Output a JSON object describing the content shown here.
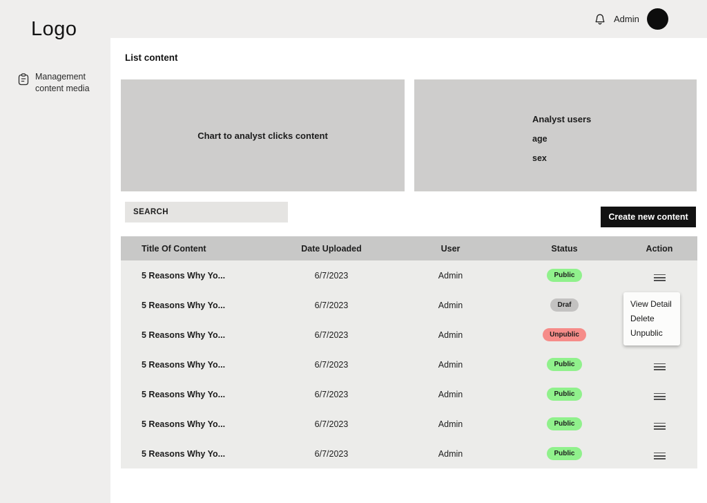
{
  "sidebar": {
    "logo": "Logo",
    "items": [
      {
        "label": "Management\ncontent media"
      }
    ]
  },
  "header": {
    "user": "Admin",
    "icons": [
      "bell-icon",
      "avatar"
    ]
  },
  "page": {
    "title": "List content"
  },
  "panels": {
    "chart_placeholder": "Chart to analyst clicks content",
    "analyst": {
      "title": "Analyst users",
      "lines": [
        "age",
        "sex"
      ]
    }
  },
  "search": {
    "placeholder": "SEARCH"
  },
  "actions": {
    "create_button": "Create new content"
  },
  "table": {
    "columns": [
      "Title Of Content",
      "Date Uploaded",
      "User",
      "Status",
      "Action"
    ],
    "rows": [
      {
        "title": "5 Reasons Why Yo...",
        "date": "6/7/2023",
        "user": "Admin",
        "status": "Public",
        "status_type": "public"
      },
      {
        "title": "5 Reasons Why Yo...",
        "date": "6/7/2023",
        "user": "Admin",
        "status": "Draf",
        "status_type": "draf"
      },
      {
        "title": "5 Reasons Why Yo...",
        "date": "6/7/2023",
        "user": "Admin",
        "status": "Unpublic",
        "status_type": "unpublic"
      },
      {
        "title": "5 Reasons Why Yo...",
        "date": "6/7/2023",
        "user": "Admin",
        "status": "Public",
        "status_type": "public"
      },
      {
        "title": "5 Reasons Why Yo...",
        "date": "6/7/2023",
        "user": "Admin",
        "status": "Public",
        "status_type": "public"
      },
      {
        "title": "5 Reasons Why Yo...",
        "date": "6/7/2023",
        "user": "Admin",
        "status": "Public",
        "status_type": "public"
      },
      {
        "title": "5 Reasons Why Yo...",
        "date": "6/7/2023",
        "user": "Admin",
        "status": "Public",
        "status_type": "public"
      }
    ]
  },
  "context_menu": {
    "items": [
      "View Detail",
      "Delete",
      "Unpublic"
    ]
  },
  "colors": {
    "badge_public": "#90F18C",
    "badge_draf": "#C3C2C1",
    "badge_unpublic": "#F68C89",
    "button_accent": "#121212",
    "surface_gray": "#CECDCC"
  }
}
